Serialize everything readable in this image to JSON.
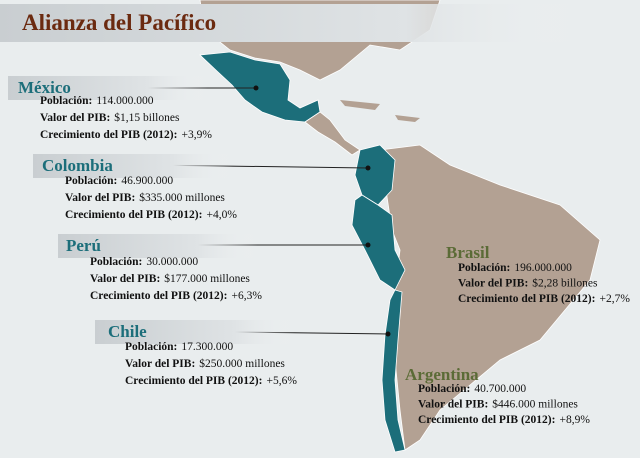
{
  "title": "Alianza del Pacífico",
  "countries": [
    {
      "name": "México",
      "rows": [
        {
          "label": "Población:",
          "value": "114.000.000"
        },
        {
          "label": "Valor del PIB:",
          "value": "$1,15 billones"
        },
        {
          "label": "Crecimiento del PIB (2012):",
          "value": "+3,9%"
        }
      ]
    },
    {
      "name": "Colombia",
      "rows": [
        {
          "label": "Población:",
          "value": "46.900.000"
        },
        {
          "label": "Valor del PIB:",
          "value": "$335.000 millones"
        },
        {
          "label": "Crecimiento del PIB (2012):",
          "value": "+4,0%"
        }
      ]
    },
    {
      "name": "Perú",
      "rows": [
        {
          "label": "Población:",
          "value": "30.000.000"
        },
        {
          "label": "Valor del PIB:",
          "value": "$177.000 millones"
        },
        {
          "label": "Crecimiento del PIB (2012):",
          "value": "+6,3%"
        }
      ]
    },
    {
      "name": "Chile",
      "rows": [
        {
          "label": "Población:",
          "value": "17.300.000"
        },
        {
          "label": "Valor del PIB:",
          "value": "$250.000 millones"
        },
        {
          "label": "Crecimiento del PIB (2012):",
          "value": "+5,6%"
        }
      ]
    },
    {
      "name": "Brasil",
      "rows": [
        {
          "label": "Población:",
          "value": "196.000.000"
        },
        {
          "label": "Valor del PIB:",
          "value": "$2,28 billones"
        },
        {
          "label": "Crecimiento del PIB (2012):",
          "value": "+2,7%"
        }
      ]
    },
    {
      "name": "Argentina",
      "rows": [
        {
          "label": "Población:",
          "value": "40.700.000"
        },
        {
          "label": "Valor del PIB:",
          "value": "$446.000 millones"
        },
        {
          "label": "Crecimiento del PIB (2012):",
          "value": "+8,9%"
        }
      ]
    }
  ]
}
